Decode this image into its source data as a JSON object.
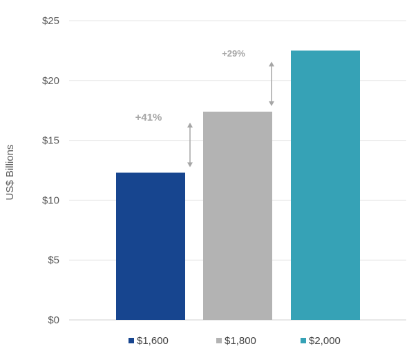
{
  "chart_data": {
    "type": "bar",
    "categories": [
      "$1,600",
      "$1,800",
      "$2,000"
    ],
    "values": [
      12.3,
      17.4,
      22.5
    ],
    "colors": [
      "#17458f",
      "#b3b3b3",
      "#36a2b6"
    ],
    "title": "",
    "xlabel": "",
    "ylabel": "US$ Billions",
    "ylim": [
      0,
      25
    ],
    "yticks": [
      0,
      5,
      10,
      15,
      20,
      25
    ],
    "ytick_labels": [
      "$0",
      "$5",
      "$10",
      "$15",
      "$20",
      "$25"
    ],
    "grid": true,
    "legend": {
      "placement": "bottom",
      "entries": [
        "$1,600",
        "$1,800",
        "$2,000"
      ]
    },
    "annotations": [
      {
        "text": "+41%",
        "between": [
          "$1,600",
          "$1,800"
        ]
      },
      {
        "text": "+29%",
        "between": [
          "$1,800",
          "$2,000"
        ]
      }
    ]
  }
}
